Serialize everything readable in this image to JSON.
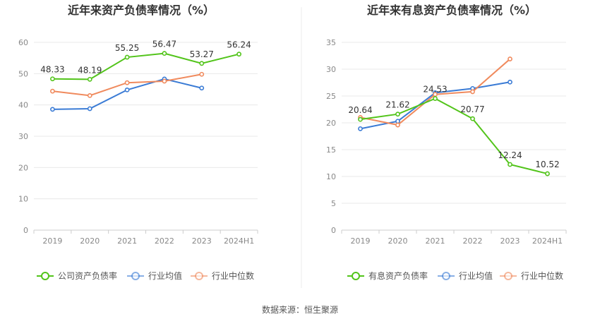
{
  "source": "数据来源：恒生聚源",
  "chart_data": [
    {
      "type": "line",
      "title": "近年来资产负债率情况（%）",
      "categories": [
        "2019",
        "2020",
        "2021",
        "2022",
        "2023",
        "2024H1"
      ],
      "ylim": [
        0,
        60
      ],
      "yticks": [
        0,
        10,
        20,
        30,
        40,
        50,
        60
      ],
      "grid": true,
      "legend_position": "bottom",
      "series": [
        {
          "name": "公司资产负债率",
          "color": "#52c41a",
          "labeled": true,
          "values": [
            48.33,
            48.19,
            55.25,
            56.47,
            53.27,
            56.24
          ]
        },
        {
          "name": "行业均值",
          "color": "#3a7bd5",
          "labeled": false,
          "values": [
            38.6,
            38.8,
            44.8,
            48.3,
            45.4,
            null
          ]
        },
        {
          "name": "行业中位数",
          "color": "#f08a5d",
          "labeled": false,
          "values": [
            44.4,
            43.0,
            47.1,
            47.6,
            49.8,
            null
          ]
        }
      ]
    },
    {
      "type": "line",
      "title": "近年来有息资产负债率情况（%）",
      "categories": [
        "2019",
        "2020",
        "2021",
        "2022",
        "2023",
        "2024H1"
      ],
      "ylim": [
        0,
        35
      ],
      "yticks": [
        0,
        5,
        10,
        15,
        20,
        25,
        30,
        35
      ],
      "grid": true,
      "legend_position": "bottom",
      "series": [
        {
          "name": "有息资产负债率",
          "color": "#52c41a",
          "labeled": true,
          "values": [
            20.64,
            21.62,
            24.53,
            20.77,
            12.24,
            10.52
          ]
        },
        {
          "name": "行业均值",
          "color": "#3a7bd5",
          "labeled": false,
          "values": [
            18.9,
            20.3,
            25.6,
            26.4,
            27.6,
            null
          ]
        },
        {
          "name": "行业中位数",
          "color": "#f08a5d",
          "labeled": false,
          "values": [
            21.0,
            19.6,
            25.3,
            25.8,
            31.9,
            null
          ]
        }
      ]
    }
  ]
}
